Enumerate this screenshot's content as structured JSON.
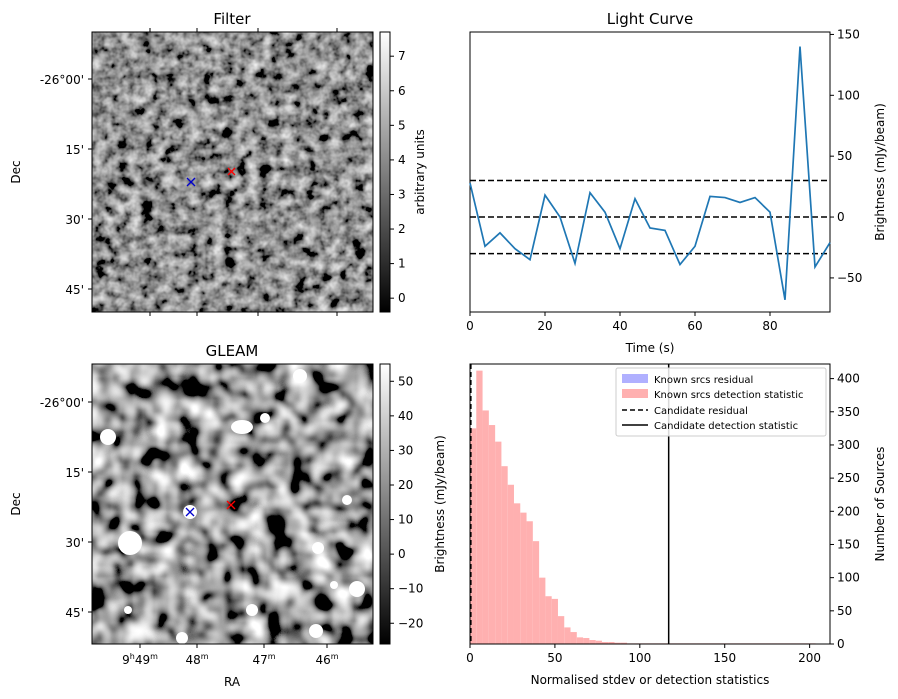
{
  "chart_data": [
    {
      "type": "image",
      "title": "Filter",
      "ylabel": "Dec",
      "y_ticks": [
        "-26°00'",
        "15'",
        "30'",
        "45'"
      ],
      "colormap": "gray",
      "colorbar": {
        "label": "arbitrary units",
        "ticks": [
          "0",
          "1",
          "2",
          "3",
          "4",
          "5",
          "6",
          "7"
        ],
        "range": [
          -0.4,
          7.7
        ]
      },
      "markers": [
        {
          "symbol": "x",
          "color": "#0000cc",
          "label": ""
        },
        {
          "symbol": "x",
          "color": "#ff0000",
          "label": ""
        }
      ]
    },
    {
      "type": "line",
      "title": "Light Curve",
      "xlabel": "Time (s)",
      "ylabel": "Brightness (mJy/beam)",
      "xlim": [
        0,
        96
      ],
      "ylim": [
        -78,
        152
      ],
      "x_ticks": [
        "0",
        "20",
        "40",
        "60",
        "80"
      ],
      "y_ticks": [
        "-50",
        "0",
        "50",
        "100",
        "150"
      ],
      "x_tick_values": [
        0,
        20,
        40,
        60,
        80
      ],
      "y_tick_values": [
        -50,
        0,
        50,
        100,
        150
      ],
      "series": [
        {
          "color": "#1f77b4",
          "x": [
            0,
            4,
            8,
            12,
            16,
            20,
            24,
            28,
            32,
            36,
            40,
            44,
            48,
            52,
            56,
            60,
            64,
            68,
            72,
            76,
            80,
            84,
            88,
            92,
            96
          ],
          "y": [
            28,
            -24,
            -13,
            -26,
            -35,
            18,
            0,
            -38,
            20,
            4,
            -26,
            15,
            -9,
            -11,
            -39,
            -24,
            17,
            16,
            12,
            16,
            4,
            -68,
            140,
            -41,
            -21
          ]
        }
      ],
      "hlines": [
        {
          "y": 30,
          "style": "dashed",
          "color": "#000000"
        },
        {
          "y": 0,
          "style": "dashed",
          "color": "#000000"
        },
        {
          "y": -30,
          "style": "dashed",
          "color": "#000000"
        }
      ]
    },
    {
      "type": "image",
      "title": "GLEAM",
      "xlabel": "RA",
      "ylabel": "Dec",
      "x_ticks": [
        "9h49m",
        "48m",
        "47m",
        "46m"
      ],
      "x_ticks_display": [
        {
          "base": "9",
          "h": "h",
          "mid": "49",
          "m": "m"
        },
        {
          "base": "",
          "h": "",
          "mid": "48",
          "m": "m"
        },
        {
          "base": "",
          "h": "",
          "mid": "47",
          "m": "m"
        },
        {
          "base": "",
          "h": "",
          "mid": "46",
          "m": "m"
        }
      ],
      "y_ticks": [
        "-26°00'",
        "15'",
        "30'",
        "45'"
      ],
      "colormap": "gray",
      "colorbar": {
        "label": "Brightness (mJy/beam)",
        "ticks": [
          "−20",
          "−10",
          "0",
          "10",
          "20",
          "30",
          "40",
          "50"
        ],
        "range": [
          -26,
          55
        ]
      },
      "markers": [
        {
          "symbol": "x",
          "color": "#0000cc",
          "label": ""
        },
        {
          "symbol": "x",
          "color": "#ff0000",
          "label": ""
        }
      ]
    },
    {
      "type": "histogram",
      "xlabel": "Normalised stdev or detection statistics",
      "ylabel": "Number of Sources",
      "xlim": [
        0,
        212
      ],
      "ylim": [
        0,
        422
      ],
      "x_ticks": [
        "0",
        "50",
        "100",
        "150",
        "200"
      ],
      "x_tick_values": [
        0,
        50,
        100,
        150,
        200
      ],
      "y_ticks": [
        "0",
        "50",
        "100",
        "150",
        "200",
        "250",
        "300",
        "350",
        "400"
      ],
      "y_tick_values": [
        0,
        50,
        100,
        150,
        200,
        250,
        300,
        350,
        400
      ],
      "bin_width": 3.7,
      "bins_start": 0,
      "counts": [
        325,
        412,
        352,
        330,
        305,
        268,
        240,
        212,
        198,
        185,
        155,
        100,
        72,
        68,
        42,
        25,
        18,
        10,
        9,
        6,
        5,
        3,
        3,
        2,
        2,
        1,
        1,
        1,
        1,
        1,
        1,
        1,
        1,
        1,
        1,
        1,
        1,
        1,
        1,
        1,
        1,
        1,
        1,
        1,
        1,
        1,
        1,
        1,
        1,
        1,
        1,
        1,
        1,
        1,
        1
      ],
      "legend": {
        "position": "upper right",
        "entries": [
          {
            "label": "Known srcs residual",
            "color": "#b0b0ff",
            "kind": "patch"
          },
          {
            "label": "Known srcs detection statistic",
            "color": "#ffb0b0",
            "kind": "patch"
          },
          {
            "label": "Candidate residual",
            "color": "#000000",
            "kind": "dashed"
          },
          {
            "label": "Candidate detection statistic",
            "color": "#000000",
            "kind": "solid"
          }
        ]
      },
      "vlines": [
        {
          "x": 0.5,
          "style": "dashed",
          "color": "#000000"
        },
        {
          "x": 117,
          "style": "solid",
          "color": "#000000"
        }
      ],
      "left_ylabel": "Brightness (mJy/beam)"
    }
  ]
}
